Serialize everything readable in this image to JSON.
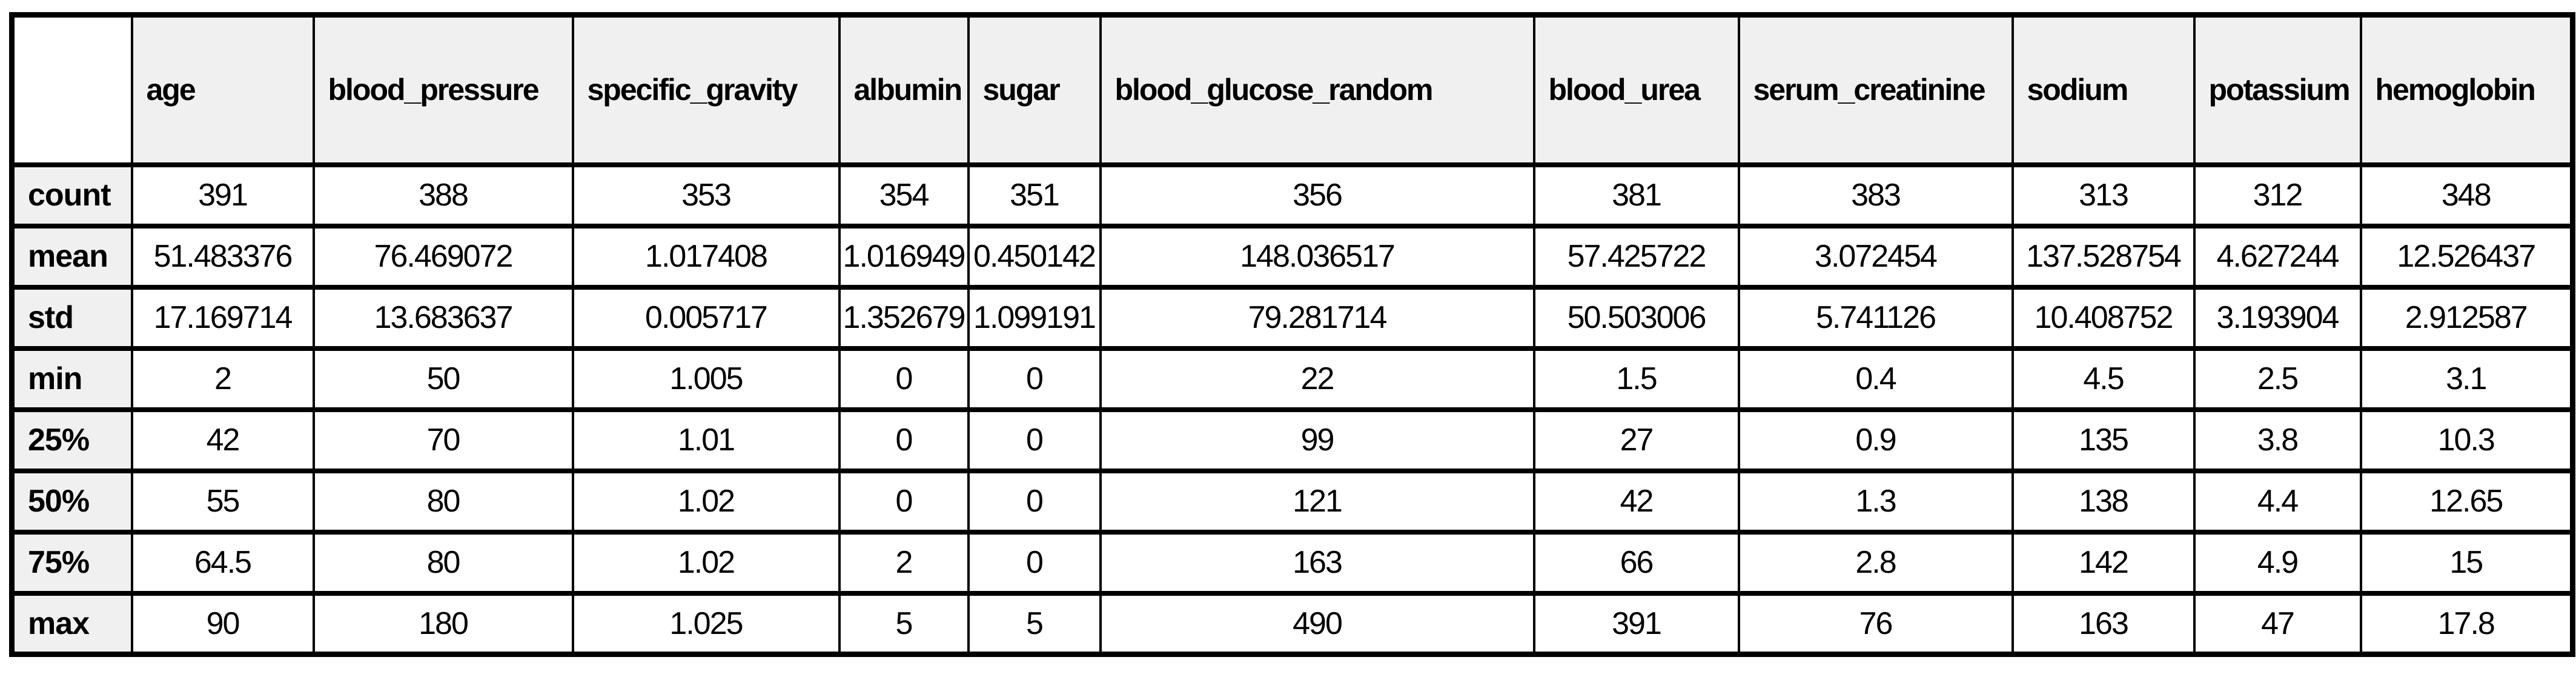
{
  "colors": {
    "page_bg": "#ffffff",
    "header_bg": "#f0f0f0",
    "corner_bg": "#ffffff",
    "border": "#000000",
    "text": "#000000"
  },
  "table": {
    "corner_label": "",
    "column_headers": [
      "age",
      "blood_pressure",
      "specific_gravity",
      "albumin",
      "sugar",
      "blood_glucose_random",
      "blood_urea",
      "serum_creatinine",
      "sodium",
      "potassium",
      "hemoglobin"
    ],
    "row_labels": [
      "count",
      "mean",
      "std",
      "min",
      "25%",
      "50%",
      "75%",
      "max"
    ],
    "rows": [
      {
        "label": "count",
        "values": [
          "391",
          "388",
          "353",
          "354",
          "351",
          "356",
          "381",
          "383",
          "313",
          "312",
          "348"
        ]
      },
      {
        "label": "mean",
        "values": [
          "51.483376",
          "76.469072",
          "1.017408",
          "1.016949",
          "0.450142",
          "148.036517",
          "57.425722",
          "3.072454",
          "137.528754",
          "4.627244",
          "12.526437"
        ]
      },
      {
        "label": "std",
        "values": [
          "17.169714",
          "13.683637",
          "0.005717",
          "1.352679",
          "1.099191",
          "79.281714",
          "50.503006",
          "5.741126",
          "10.408752",
          "3.193904",
          "2.912587"
        ]
      },
      {
        "label": "min",
        "values": [
          "2",
          "50",
          "1.005",
          "0",
          "0",
          "22",
          "1.5",
          "0.4",
          "4.5",
          "2.5",
          "3.1"
        ]
      },
      {
        "label": "25%",
        "values": [
          "42",
          "70",
          "1.01",
          "0",
          "0",
          "99",
          "27",
          "0.9",
          "135",
          "3.8",
          "10.3"
        ]
      },
      {
        "label": "50%",
        "values": [
          "55",
          "80",
          "1.02",
          "0",
          "0",
          "121",
          "42",
          "1.3",
          "138",
          "4.4",
          "12.65"
        ]
      },
      {
        "label": "75%",
        "values": [
          "64.5",
          "80",
          "1.02",
          "2",
          "0",
          "163",
          "66",
          "2.8",
          "142",
          "4.9",
          "15"
        ]
      },
      {
        "label": "max",
        "values": [
          "90",
          "180",
          "1.025",
          "5",
          "5",
          "490",
          "391",
          "76",
          "163",
          "47",
          "17.8"
        ]
      }
    ]
  }
}
